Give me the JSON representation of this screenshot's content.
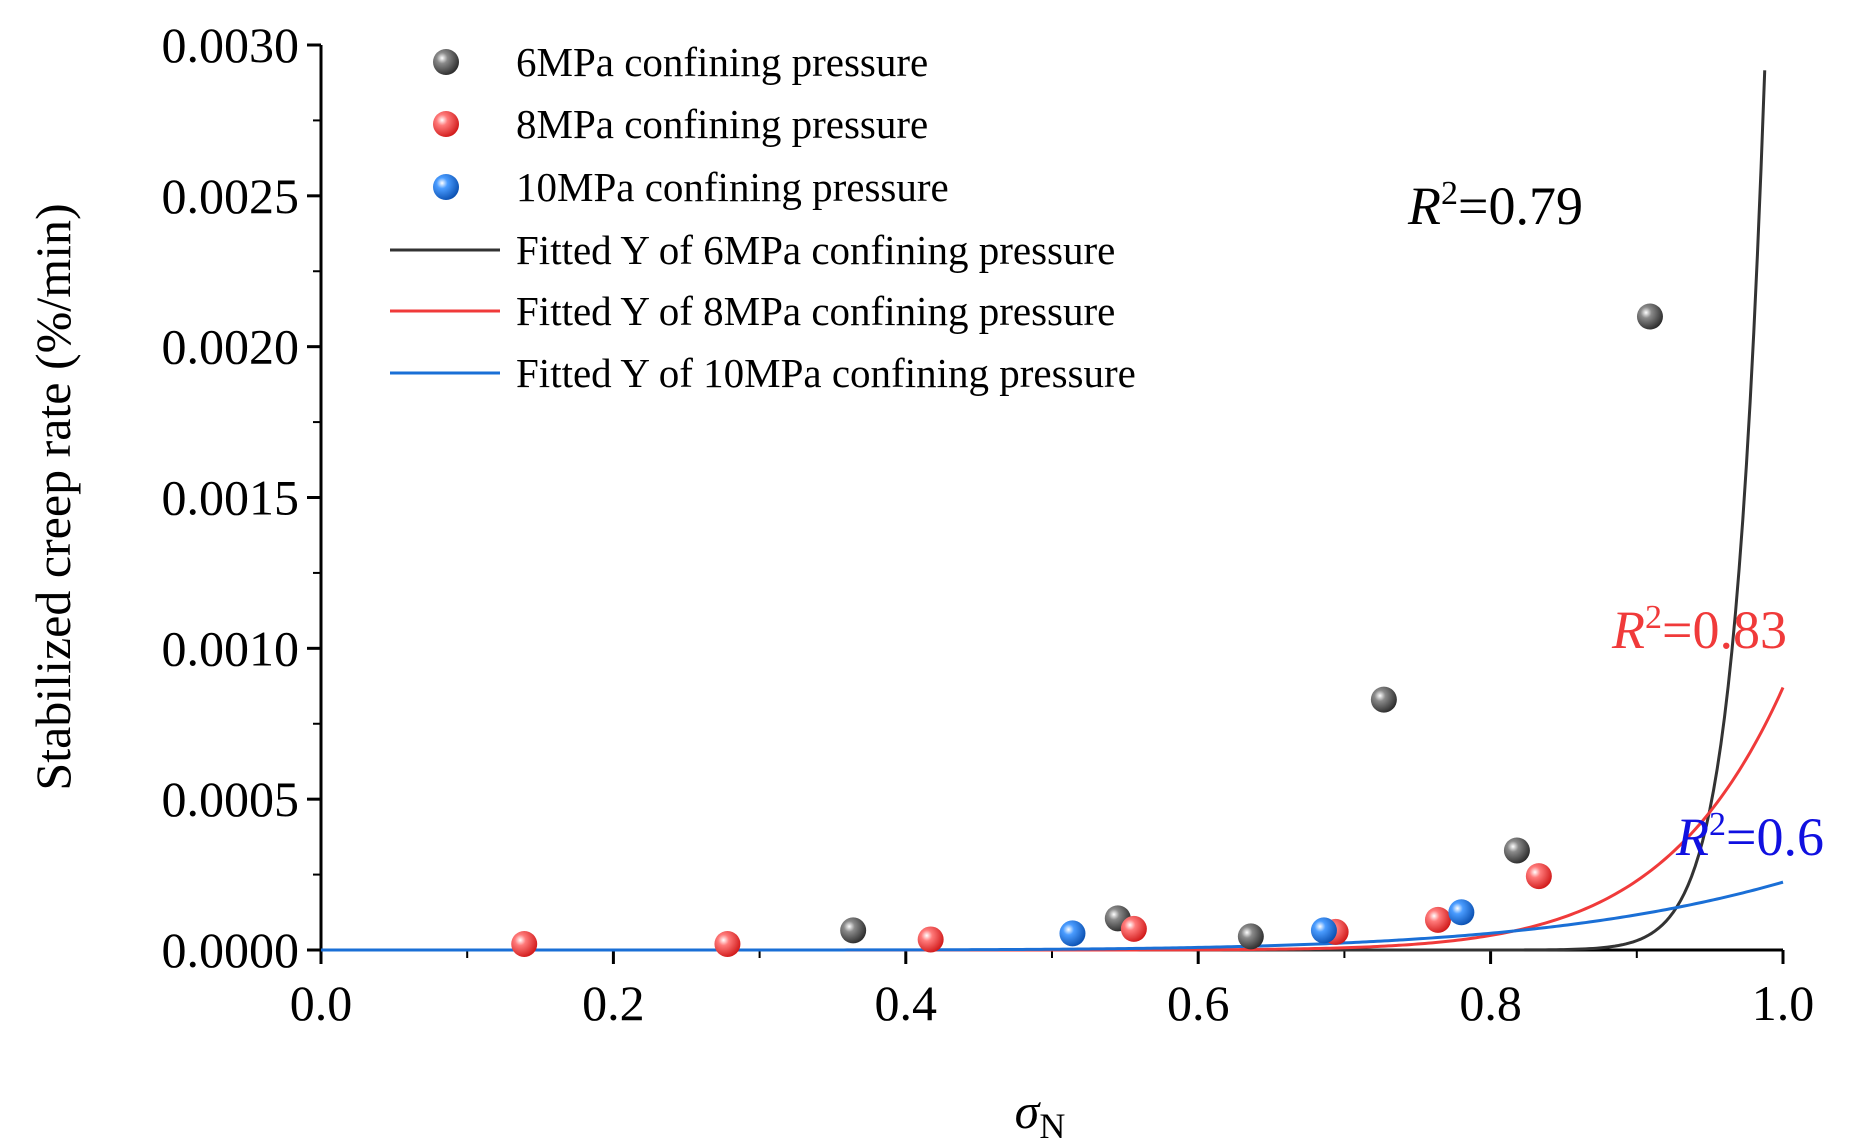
{
  "chart_data": {
    "type": "scatter",
    "title": "",
    "xlabel_symbol": "σ",
    "xlabel_subscript": "N",
    "ylabel": "Stabilized creep rate (%/min)",
    "xlim": [
      0.0,
      1.0
    ],
    "ylim": [
      0.0,
      0.003
    ],
    "x_ticks": [
      "0.0",
      "0.2",
      "0.4",
      "0.6",
      "0.8",
      "1.0"
    ],
    "y_ticks": [
      "0.0000",
      "0.0005",
      "0.0010",
      "0.0015",
      "0.0020",
      "0.0025",
      "0.0030"
    ],
    "grid": false,
    "legend_position": "top-left",
    "series": [
      {
        "name": "6MPa confining pressure",
        "color": "#555555",
        "points": [
          {
            "x": 0.364,
            "y": 6.5e-05
          },
          {
            "x": 0.545,
            "y": 0.000105
          },
          {
            "x": 0.636,
            "y": 4.5e-05
          },
          {
            "x": 0.727,
            "y": 0.00083
          },
          {
            "x": 0.818,
            "y": 0.00033
          },
          {
            "x": 0.909,
            "y": 0.0021
          }
        ]
      },
      {
        "name": "8MPa confining pressure",
        "color": "#f03a3a",
        "points": [
          {
            "x": 0.139,
            "y": 2e-05
          },
          {
            "x": 0.278,
            "y": 2e-05
          },
          {
            "x": 0.417,
            "y": 3.5e-05
          },
          {
            "x": 0.556,
            "y": 7e-05
          },
          {
            "x": 0.694,
            "y": 6e-05
          },
          {
            "x": 0.764,
            "y": 0.0001
          },
          {
            "x": 0.833,
            "y": 0.000245
          }
        ]
      },
      {
        "name": "10MPa confining pressure",
        "color": "#1a6fd6",
        "points": [
          {
            "x": 0.514,
            "y": 5.5e-05
          },
          {
            "x": 0.686,
            "y": 6.5e-05
          },
          {
            "x": 0.78,
            "y": 0.000125
          }
        ]
      }
    ],
    "fits": [
      {
        "name": "Fitted Y of 6MPa confining pressure",
        "color": "#333333",
        "x0": 0.52,
        "k": 21.92,
        "y_at_1": 0.0052,
        "r2_value": "0.79"
      },
      {
        "name": "Fitted Y of 8MPa confining pressure",
        "color": "#f03a3a",
        "x0": 0.26,
        "k": 9.18,
        "y_at_1": 0.00087,
        "r2_value": "0.83"
      },
      {
        "name": "Fitted Y of 10MPa confining pressure",
        "color": "#1a6fd6",
        "x0": 0.1,
        "k": 5.57,
        "y_at_1": 0.000225,
        "r2_value": "0.6"
      }
    ],
    "r2_annotations": [
      {
        "symbol": "R",
        "sup": "2",
        "value": "=0.79",
        "color": "#000000"
      },
      {
        "symbol": "R",
        "sup": "2",
        "value": "=0.83",
        "color": "#f03a3a"
      },
      {
        "symbol": "R",
        "sup": "2",
        "value": "=0.6",
        "color": "#1010e0"
      }
    ]
  }
}
